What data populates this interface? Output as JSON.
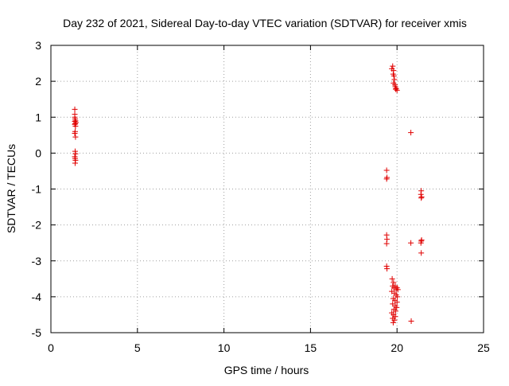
{
  "chart_data": {
    "type": "scatter",
    "title": "Day 232 of 2021, Sidereal Day-to-day VTEC variation (SDTVAR) for receiver xmis",
    "xlabel": "GPS time / hours",
    "ylabel": "SDTVAR / TECUs",
    "xlim": [
      0,
      25
    ],
    "ylim": [
      -5,
      3
    ],
    "xticks": [
      0,
      5,
      10,
      15,
      20,
      25
    ],
    "yticks": [
      -5,
      -4,
      -3,
      -2,
      -1,
      0,
      1,
      2,
      3
    ],
    "grid": true,
    "marker": "+",
    "color": "#e00000",
    "series": [
      {
        "name": "SDTVAR",
        "points": [
          [
            1.38,
            1.22
          ],
          [
            1.38,
            1.08
          ],
          [
            1.38,
            1.0
          ],
          [
            1.4,
            0.95
          ],
          [
            1.42,
            0.9
          ],
          [
            1.38,
            0.88
          ],
          [
            1.45,
            0.85
          ],
          [
            1.4,
            0.82
          ],
          [
            1.38,
            0.8
          ],
          [
            1.42,
            0.75
          ],
          [
            1.4,
            0.6
          ],
          [
            1.38,
            0.55
          ],
          [
            1.42,
            0.45
          ],
          [
            1.4,
            0.05
          ],
          [
            1.42,
            -0.02
          ],
          [
            1.38,
            -0.1
          ],
          [
            1.4,
            -0.15
          ],
          [
            1.42,
            -0.2
          ],
          [
            1.4,
            -0.28
          ],
          [
            19.4,
            -0.48
          ],
          [
            19.42,
            -0.68
          ],
          [
            19.4,
            -0.72
          ],
          [
            19.4,
            -2.28
          ],
          [
            19.42,
            -2.4
          ],
          [
            19.4,
            -2.52
          ],
          [
            19.4,
            -3.15
          ],
          [
            19.42,
            -3.22
          ],
          [
            19.7,
            2.35
          ],
          [
            19.75,
            2.42
          ],
          [
            19.8,
            2.3
          ],
          [
            19.78,
            2.2
          ],
          [
            19.82,
            2.15
          ],
          [
            19.85,
            2.05
          ],
          [
            19.8,
            1.95
          ],
          [
            19.88,
            1.9
          ],
          [
            19.9,
            1.85
          ],
          [
            19.95,
            1.8
          ],
          [
            19.92,
            1.78
          ],
          [
            20.0,
            1.75
          ],
          [
            19.72,
            -3.5
          ],
          [
            19.8,
            -3.6
          ],
          [
            19.75,
            -3.7
          ],
          [
            19.82,
            -3.75
          ],
          [
            19.9,
            -3.7
          ],
          [
            19.95,
            -3.8
          ],
          [
            20.0,
            -3.75
          ],
          [
            20.05,
            -3.8
          ],
          [
            19.7,
            -3.85
          ],
          [
            19.85,
            -3.9
          ],
          [
            19.95,
            -3.95
          ],
          [
            20.02,
            -4.0
          ],
          [
            19.78,
            -4.05
          ],
          [
            19.88,
            -4.1
          ],
          [
            20.0,
            -4.15
          ],
          [
            19.75,
            -4.2
          ],
          [
            19.9,
            -4.25
          ],
          [
            19.98,
            -4.3
          ],
          [
            19.82,
            -4.35
          ],
          [
            19.92,
            -4.4
          ],
          [
            19.7,
            -4.45
          ],
          [
            19.8,
            -4.5
          ],
          [
            19.9,
            -4.55
          ],
          [
            19.75,
            -4.6
          ],
          [
            19.85,
            -4.65
          ],
          [
            19.78,
            -4.72
          ],
          [
            20.8,
            0.57
          ],
          [
            20.8,
            -2.5
          ],
          [
            20.82,
            -4.68
          ],
          [
            21.4,
            -1.05
          ],
          [
            21.38,
            -1.15
          ],
          [
            21.42,
            -1.22
          ],
          [
            21.4,
            -1.25
          ],
          [
            21.4,
            -2.45
          ],
          [
            21.38,
            -2.5
          ],
          [
            21.42,
            -2.42
          ],
          [
            21.4,
            -2.78
          ]
        ]
      }
    ]
  }
}
